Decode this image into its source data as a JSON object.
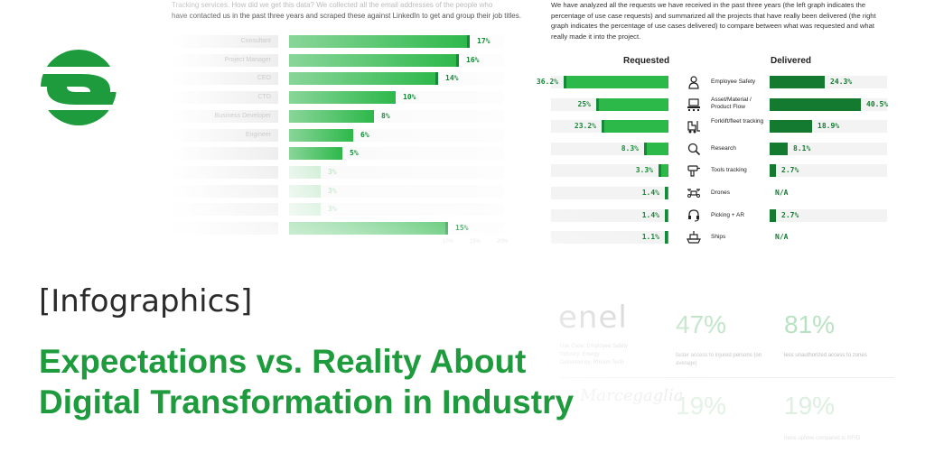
{
  "brand": {
    "accent": "#1e9b3d",
    "dark_green": "#137a2f",
    "bright_green": "#2db84a"
  },
  "tag": "[Infographics]",
  "headline": {
    "line1": "Expectations vs. Reality About",
    "line2": "Digital Transformation in Industry"
  },
  "background_left": {
    "intro_line1": "Tracking services. How did we get this data? We collected all the email addresses of the people who",
    "intro_line2": "have contacted us in the past three years and scraped these against LinkedIn to get and group their job titles.",
    "job_titles": [
      {
        "label": "Consultant",
        "value": 17
      },
      {
        "label": "Project Manager",
        "value": 16
      },
      {
        "label": "CEO",
        "value": 14
      },
      {
        "label": "CTO",
        "value": 10
      },
      {
        "label": "Business Developer",
        "value": 8
      },
      {
        "label": "Engineer",
        "value": 6
      },
      {
        "label": "",
        "value": 5
      },
      {
        "label": "",
        "value": 3
      },
      {
        "label": "",
        "value": 3
      },
      {
        "label": "",
        "value": 3
      },
      {
        "label": "",
        "value": 15
      }
    ],
    "value_labels": [
      "17%",
      "16%",
      "14%",
      "10%",
      "8%",
      "6%",
      "5%",
      "3%",
      "3%",
      "3%",
      "15%"
    ],
    "axis_ticks": [
      "10%",
      "15%",
      "20%"
    ]
  },
  "background_right": {
    "intro": [
      "We have analyzed all the requests we have received in the past three years (the left graph indicates the",
      "percentage of use case requests)  and summarized all the projects that have really been delivered (the right",
      "graph indicates the percentage of use cases delivered) to compare between what was requested and what",
      "really made it into the project."
    ],
    "requested_heading": "Requested",
    "delivered_heading": "Delivered",
    "use_cases": [
      {
        "name": "Employee Safety",
        "icon": "person-icon",
        "requested": 36.2,
        "requested_label": "36.2%",
        "delivered": 24.3,
        "delivered_label": "24.3%"
      },
      {
        "name": "Asset/Material / Product Flow",
        "icon": "pallet-icon",
        "requested": 25,
        "requested_label": "25%",
        "delivered": 40.5,
        "delivered_label": "40.5%"
      },
      {
        "name": "Forklift/fleet tracking",
        "icon": "forklift-icon",
        "requested": 23.2,
        "requested_label": "23.2%",
        "delivered": 18.9,
        "delivered_label": "18.9%"
      },
      {
        "name": "Research",
        "icon": "magnifier-icon",
        "requested": 8.3,
        "requested_label": "8.3%",
        "delivered": 8.1,
        "delivered_label": "8.1%"
      },
      {
        "name": "Tools tracking",
        "icon": "drill-icon",
        "requested": 3.3,
        "requested_label": "3.3%",
        "delivered": 2.7,
        "delivered_label": "2.7%"
      },
      {
        "name": "Drones",
        "icon": "drone-icon",
        "requested": 1.4,
        "requested_label": "1.4%",
        "delivered": null,
        "delivered_label": "N/A"
      },
      {
        "name": "Picking + AR",
        "icon": "headset-icon",
        "requested": 1.4,
        "requested_label": "1.4%",
        "delivered": 2.7,
        "delivered_label": "2.7%"
      },
      {
        "name": "Ships",
        "icon": "ship-icon",
        "requested": 1.1,
        "requested_label": "1.1%",
        "delivered": null,
        "delivered_label": "N/A"
      }
    ]
  },
  "case_study": {
    "logo_text": "enel",
    "meta_line1": "Use Case: Employee Safety",
    "meta_line2": "Industry: Energy",
    "meta_line3": "Delivered by: Rhinon Tech",
    "stat1_value": "47%",
    "stat1_desc": "faster access to injured persons (on average)",
    "stat2_value": "81%",
    "stat2_desc": "less unauthorized access to zones",
    "logo2_text": "Marcegaglia",
    "stat3_value": "19%",
    "stat4_value": "19%",
    "stat4_desc": "more uptime compared to RFID"
  }
}
